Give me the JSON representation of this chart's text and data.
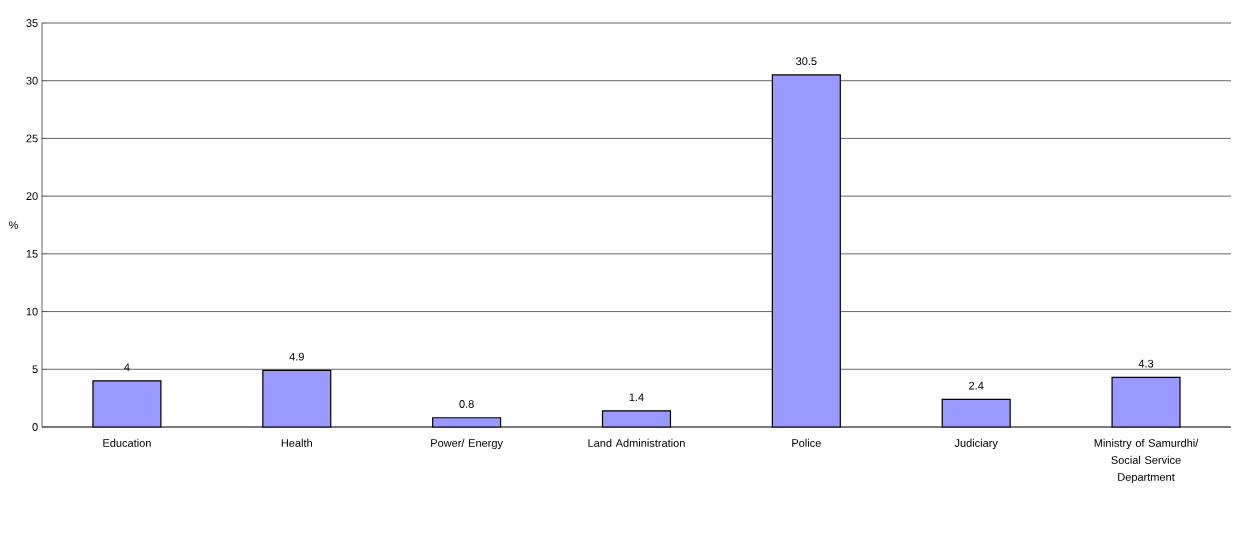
{
  "chart_data": {
    "type": "bar",
    "ylabel": "%",
    "categories": [
      "Education",
      "Health",
      "Power/ Energy",
      "Land Administration",
      "Police",
      "Judiciary",
      "Ministry of Samurdhi/ Social Service Department"
    ],
    "values": [
      4,
      4.9,
      0.8,
      1.4,
      30.5,
      2.4,
      4.3
    ],
    "color": "#9999ff",
    "ylim": [
      0,
      35
    ],
    "yticks": [
      0,
      5,
      10,
      15,
      20,
      25,
      30,
      35
    ],
    "grid": "y",
    "data_labels": true
  }
}
